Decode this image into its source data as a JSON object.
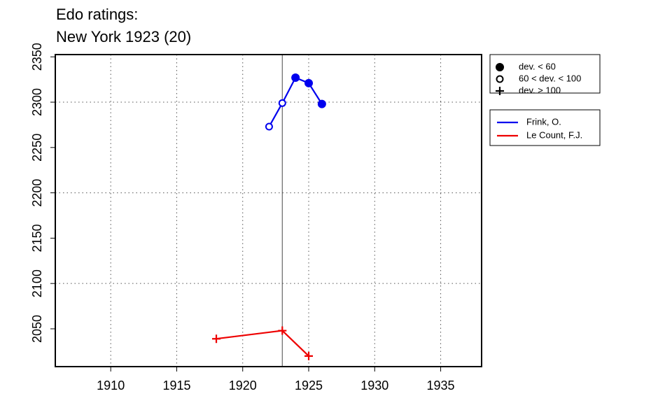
{
  "chart_data": {
    "type": "line",
    "title": "Edo ratings:",
    "subtitle": "New York 1923 (20)",
    "xlim": [
      1905.8,
      1938.1
    ],
    "ylim": [
      2008.3,
      2352.5
    ],
    "xticks": [
      1910,
      1915,
      1920,
      1925,
      1930,
      1935
    ],
    "yticks": [
      2050,
      2100,
      2150,
      2200,
      2250,
      2300,
      2350
    ],
    "y_grid": [
      2100,
      2200,
      2300
    ],
    "vline": 1923,
    "marker_legend": [
      {
        "label": "dev. < 60",
        "marker": "filled"
      },
      {
        "label": "60 < dev. < 100",
        "marker": "open"
      },
      {
        "label": "dev. > 100",
        "marker": "plus"
      }
    ],
    "series": [
      {
        "name": "Frink, O.",
        "color": "#0000ee",
        "x": [
          1922,
          1923,
          1924,
          1925,
          1926
        ],
        "values": [
          2273,
          2299,
          2327,
          2321,
          2298
        ],
        "markers": [
          "open",
          "open",
          "filled",
          "filled",
          "filled"
        ]
      },
      {
        "name": "Le Count, F.J.",
        "color": "#ee0000",
        "x": [
          1918,
          1923,
          1925
        ],
        "values": [
          2039,
          2048,
          2020
        ],
        "markers": [
          "plus",
          "plus",
          "plus"
        ]
      }
    ]
  }
}
